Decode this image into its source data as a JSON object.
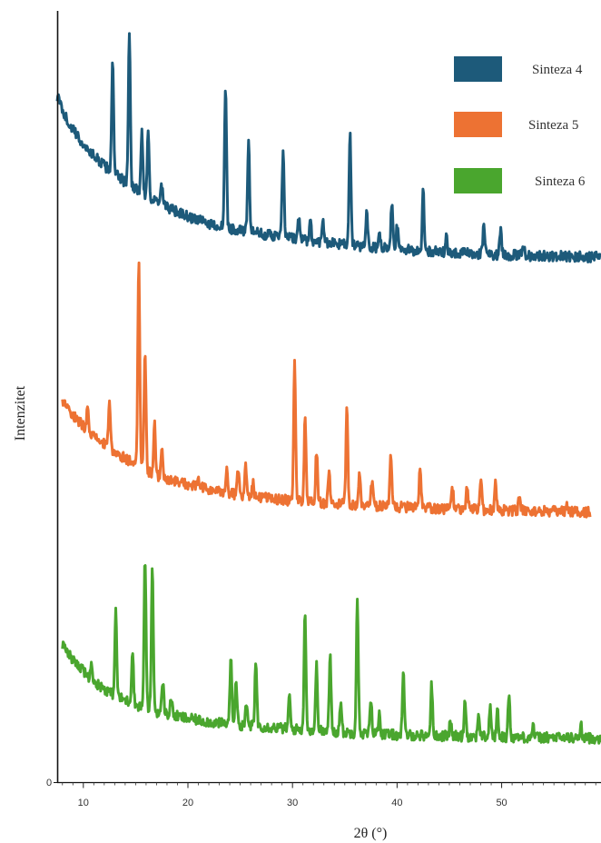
{
  "chart_data": {
    "type": "line",
    "title": "",
    "xlabel": "2θ (°)",
    "ylabel": "Intenzitet",
    "xlim": [
      7.5,
      59.5
    ],
    "x_ticks": [
      10,
      20,
      30,
      40,
      50
    ],
    "y_tick_labels": [
      "0"
    ],
    "grid": false,
    "legend_position": "top-right",
    "series": [
      {
        "name": "Sinteza 4",
        "color": "#1d5a7a",
        "baseline": [
          [
            7.5,
            100
          ],
          [
            8.5,
            89
          ],
          [
            10,
            79
          ],
          [
            12,
            70
          ],
          [
            14,
            63
          ],
          [
            16,
            57
          ],
          [
            18,
            52
          ],
          [
            20,
            48
          ],
          [
            22,
            45
          ],
          [
            25,
            42
          ],
          [
            28,
            40
          ],
          [
            32,
            37.5
          ],
          [
            36,
            35.5
          ],
          [
            40,
            34
          ],
          [
            45,
            32.5
          ],
          [
            50,
            31.5
          ],
          [
            55,
            31
          ],
          [
            59.5,
            30.5
          ]
        ],
        "peaks": [
          [
            12.8,
            48
          ],
          [
            14.4,
            67
          ],
          [
            15.6,
            26
          ],
          [
            16.2,
            28
          ],
          [
            17.5,
            8
          ],
          [
            23.6,
            62
          ],
          [
            25.8,
            40
          ],
          [
            29.1,
            37
          ],
          [
            30.6,
            10
          ],
          [
            31.7,
            8
          ],
          [
            32.9,
            11
          ],
          [
            35.5,
            48
          ],
          [
            37.1,
            16
          ],
          [
            38.3,
            8
          ],
          [
            39.5,
            19
          ],
          [
            40.0,
            10
          ],
          [
            42.5,
            26
          ],
          [
            44.7,
            8
          ],
          [
            48.3,
            13
          ],
          [
            49.9,
            12
          ],
          [
            52.1,
            5
          ]
        ]
      },
      {
        "name": "Sinteza 5",
        "color": "#ed7233",
        "baseline": [
          [
            8,
            62
          ],
          [
            9,
            56
          ],
          [
            11,
            47
          ],
          [
            13,
            40
          ],
          [
            15,
            35
          ],
          [
            17,
            30
          ],
          [
            20,
            26
          ],
          [
            23,
            23
          ],
          [
            26,
            21
          ],
          [
            30,
            19
          ],
          [
            35,
            17.5
          ],
          [
            40,
            16.5
          ],
          [
            45,
            15.5
          ],
          [
            50,
            15
          ],
          [
            55,
            14.5
          ],
          [
            58.5,
            14.2
          ]
        ],
        "peaks": [
          [
            10.4,
            10
          ],
          [
            12.5,
            19
          ],
          [
            15.3,
            89
          ],
          [
            15.9,
            50
          ],
          [
            16.8,
            22
          ],
          [
            17.5,
            11
          ],
          [
            21.0,
            4
          ],
          [
            23.7,
            11
          ],
          [
            24.8,
            10
          ],
          [
            25.5,
            13
          ],
          [
            26.2,
            6
          ],
          [
            30.2,
            61
          ],
          [
            31.2,
            36
          ],
          [
            32.3,
            22
          ],
          [
            33.5,
            13
          ],
          [
            35.2,
            43
          ],
          [
            36.4,
            13
          ],
          [
            37.6,
            11
          ],
          [
            39.4,
            24
          ],
          [
            42.2,
            16
          ],
          [
            45.3,
            9
          ],
          [
            46.7,
            10
          ],
          [
            48.0,
            14
          ],
          [
            49.4,
            11
          ],
          [
            51.7,
            5
          ],
          [
            56.2,
            3
          ]
        ]
      },
      {
        "name": "Sinteza 6",
        "color": "#4aa62e",
        "baseline": [
          [
            8,
            50
          ],
          [
            9,
            43
          ],
          [
            11,
            34
          ],
          [
            13,
            28
          ],
          [
            15,
            24
          ],
          [
            17,
            21
          ],
          [
            20,
            18
          ],
          [
            23,
            16
          ],
          [
            26,
            15
          ],
          [
            30,
            13.5
          ],
          [
            35,
            12
          ],
          [
            40,
            11
          ],
          [
            45,
            10.5
          ],
          [
            50,
            10
          ],
          [
            55,
            9.8
          ],
          [
            59.5,
            9.5
          ]
        ],
        "peaks": [
          [
            10.8,
            6
          ],
          [
            13.1,
            36
          ],
          [
            14.7,
            23
          ],
          [
            15.9,
            65
          ],
          [
            16.6,
            61
          ],
          [
            17.6,
            14
          ],
          [
            18.4,
            7
          ],
          [
            24.1,
            28
          ],
          [
            24.6,
            20
          ],
          [
            25.6,
            9
          ],
          [
            26.5,
            28
          ],
          [
            29.7,
            14
          ],
          [
            31.2,
            52
          ],
          [
            32.3,
            28
          ],
          [
            33.6,
            32
          ],
          [
            34.6,
            13
          ],
          [
            36.2,
            59
          ],
          [
            37.5,
            14
          ],
          [
            38.3,
            9
          ],
          [
            40.6,
            26
          ],
          [
            43.3,
            22
          ],
          [
            45.1,
            6
          ],
          [
            46.5,
            16
          ],
          [
            47.8,
            10
          ],
          [
            48.9,
            13
          ],
          [
            49.6,
            11
          ],
          [
            50.7,
            18
          ],
          [
            53.0,
            5
          ],
          [
            57.6,
            5
          ]
        ]
      }
    ]
  }
}
